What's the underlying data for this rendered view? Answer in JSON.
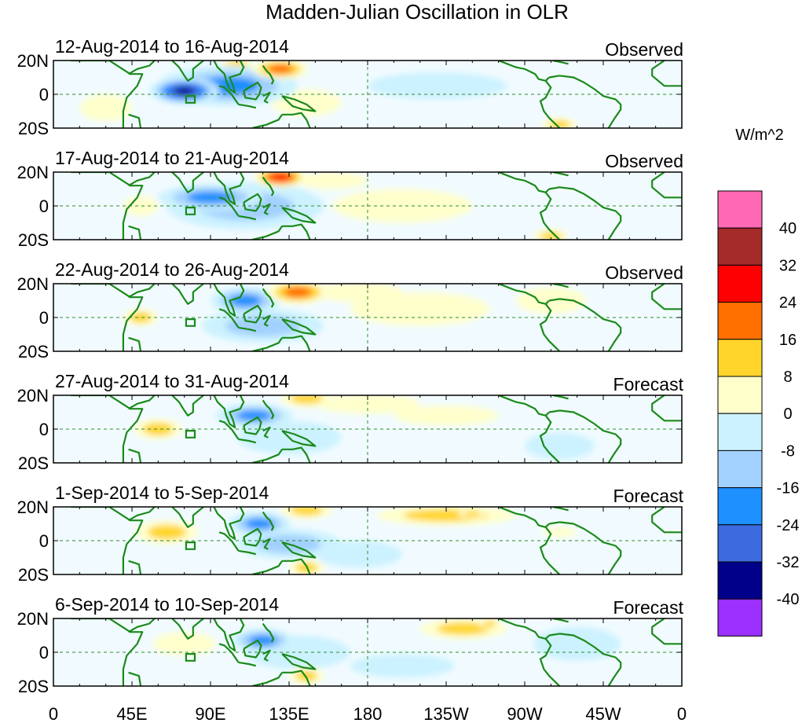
{
  "chart_data": {
    "type": "heatmap",
    "title": "Madden-Julian Oscillation in OLR",
    "units": "W/m^2",
    "colorbar": {
      "levels": [
        "40",
        "32",
        "24",
        "16",
        "8",
        "0",
        "-8",
        "-16",
        "-24",
        "-32",
        "-40"
      ],
      "colors": [
        "#ff69b4",
        "#a52a2a",
        "#ff0000",
        "#ff7000",
        "#ffd52b",
        "#ffffcc",
        "#ccf2ff",
        "#a3d1ff",
        "#1e90ff",
        "#3c6be0",
        "#00008b",
        "#9b30ff"
      ]
    },
    "xticks": [
      "0",
      "45E",
      "90E",
      "135E",
      "180",
      "135W",
      "90W",
      "45W",
      "0"
    ],
    "yticks": [
      "20N",
      "0",
      "20S"
    ],
    "panels": [
      {
        "period": "12-Aug-2014 to 16-Aug-2014",
        "type": "Observed",
        "anomalies": [
          {
            "lon": 75,
            "lat": 2,
            "value": -40,
            "lon_halfwidth": 20,
            "lat_halfwidth": 8
          },
          {
            "lon": 100,
            "lat": 5,
            "value": -20,
            "lon_halfwidth": 40,
            "lat_halfwidth": 12
          },
          {
            "lon": 130,
            "lat": 15,
            "value": 24,
            "lon_halfwidth": 16,
            "lat_halfwidth": 6
          },
          {
            "lon": 105,
            "lat": 17,
            "value": 16,
            "lon_halfwidth": 10,
            "lat_halfwidth": 5
          },
          {
            "lon": 145,
            "lat": -5,
            "value": 8,
            "lon_halfwidth": 20,
            "lat_halfwidth": 8
          },
          {
            "lon": 290,
            "lat": -18,
            "value": 12,
            "lon_halfwidth": 10,
            "lat_halfwidth": 4
          },
          {
            "lon": 220,
            "lat": 5,
            "value": -6,
            "lon_halfwidth": 40,
            "lat_halfwidth": 8
          },
          {
            "lon": 30,
            "lat": -8,
            "value": 6,
            "lon_halfwidth": 15,
            "lat_halfwidth": 8
          }
        ]
      },
      {
        "period": "17-Aug-2014 to 21-Aug-2014",
        "type": "Observed",
        "anomalies": [
          {
            "lon": 90,
            "lat": 5,
            "value": -24,
            "lon_halfwidth": 30,
            "lat_halfwidth": 8
          },
          {
            "lon": 110,
            "lat": 0,
            "value": -12,
            "lon_halfwidth": 45,
            "lat_halfwidth": 14
          },
          {
            "lon": 130,
            "lat": 17,
            "value": 28,
            "lon_halfwidth": 15,
            "lat_halfwidth": 6
          },
          {
            "lon": 160,
            "lat": 15,
            "value": 10,
            "lon_halfwidth": 20,
            "lat_halfwidth": 5
          },
          {
            "lon": 50,
            "lat": 0,
            "value": 8,
            "lon_halfwidth": 10,
            "lat_halfwidth": 6
          },
          {
            "lon": 285,
            "lat": -18,
            "value": 12,
            "lon_halfwidth": 10,
            "lat_halfwidth": 4
          },
          {
            "lon": 200,
            "lat": 0,
            "value": 5,
            "lon_halfwidth": 40,
            "lat_halfwidth": 10
          }
        ]
      },
      {
        "period": "22-Aug-2014 to 26-Aug-2014",
        "type": "Observed",
        "anomalies": [
          {
            "lon": 110,
            "lat": 10,
            "value": -22,
            "lon_halfwidth": 20,
            "lat_halfwidth": 8
          },
          {
            "lon": 120,
            "lat": -5,
            "value": -12,
            "lon_halfwidth": 35,
            "lat_halfwidth": 10
          },
          {
            "lon": 140,
            "lat": 15,
            "value": 22,
            "lon_halfwidth": 18,
            "lat_halfwidth": 7
          },
          {
            "lon": 175,
            "lat": 15,
            "value": 8,
            "lon_halfwidth": 25,
            "lat_halfwidth": 6
          },
          {
            "lon": 50,
            "lat": 0,
            "value": 18,
            "lon_halfwidth": 10,
            "lat_halfwidth": 5
          },
          {
            "lon": 210,
            "lat": 5,
            "value": 5,
            "lon_halfwidth": 40,
            "lat_halfwidth": 10
          },
          {
            "lon": 285,
            "lat": 10,
            "value": 5,
            "lon_halfwidth": 20,
            "lat_halfwidth": 8
          }
        ]
      },
      {
        "period": "27-Aug-2014 to 31-Aug-2014",
        "type": "Forecast",
        "anomalies": [
          {
            "lon": 115,
            "lat": 8,
            "value": -20,
            "lon_halfwidth": 22,
            "lat_halfwidth": 7
          },
          {
            "lon": 135,
            "lat": -5,
            "value": -10,
            "lon_halfwidth": 30,
            "lat_halfwidth": 10
          },
          {
            "lon": 145,
            "lat": 18,
            "value": 18,
            "lon_halfwidth": 15,
            "lat_halfwidth": 5
          },
          {
            "lon": 180,
            "lat": 15,
            "value": 10,
            "lon_halfwidth": 30,
            "lat_halfwidth": 6
          },
          {
            "lon": 60,
            "lat": 0,
            "value": 18,
            "lon_halfwidth": 14,
            "lat_halfwidth": 6
          },
          {
            "lon": 225,
            "lat": 8,
            "value": 8,
            "lon_halfwidth": 30,
            "lat_halfwidth": 6
          },
          {
            "lon": 290,
            "lat": -10,
            "value": -6,
            "lon_halfwidth": 20,
            "lat_halfwidth": 8
          }
        ]
      },
      {
        "period": "1-Sep-2014 to 5-Sep-2014",
        "type": "Forecast",
        "anomalies": [
          {
            "lon": 118,
            "lat": 10,
            "value": -22,
            "lon_halfwidth": 18,
            "lat_halfwidth": 7
          },
          {
            "lon": 135,
            "lat": -2,
            "value": -12,
            "lon_halfwidth": 30,
            "lat_halfwidth": 9
          },
          {
            "lon": 65,
            "lat": 5,
            "value": 12,
            "lon_halfwidth": 18,
            "lat_halfwidth": 7
          },
          {
            "lon": 145,
            "lat": -16,
            "value": 14,
            "lon_halfwidth": 10,
            "lat_halfwidth": 5
          },
          {
            "lon": 145,
            "lat": 18,
            "value": 12,
            "lon_halfwidth": 15,
            "lat_halfwidth": 5
          },
          {
            "lon": 225,
            "lat": 15,
            "value": 12,
            "lon_halfwidth": 40,
            "lat_halfwidth": 6
          },
          {
            "lon": 240,
            "lat": 16,
            "value": 18,
            "lon_halfwidth": 8,
            "lat_halfwidth": 3
          },
          {
            "lon": 175,
            "lat": -8,
            "value": -6,
            "lon_halfwidth": 25,
            "lat_halfwidth": 8
          },
          {
            "lon": 290,
            "lat": 5,
            "value": 10,
            "lon_halfwidth": 10,
            "lat_halfwidth": 3
          }
        ]
      },
      {
        "period": "6-Sep-2014 to 10-Sep-2014",
        "type": "Forecast",
        "anomalies": [
          {
            "lon": 120,
            "lat": 7,
            "value": -22,
            "lon_halfwidth": 18,
            "lat_halfwidth": 7
          },
          {
            "lon": 140,
            "lat": 0,
            "value": -10,
            "lon_halfwidth": 30,
            "lat_halfwidth": 10
          },
          {
            "lon": 75,
            "lat": 5,
            "value": 10,
            "lon_halfwidth": 18,
            "lat_halfwidth": 7
          },
          {
            "lon": 145,
            "lat": -14,
            "value": 14,
            "lon_halfwidth": 10,
            "lat_halfwidth": 5
          },
          {
            "lon": 235,
            "lat": 14,
            "value": 14,
            "lon_halfwidth": 25,
            "lat_halfwidth": 6
          },
          {
            "lon": 250,
            "lat": 17,
            "value": 18,
            "lon_halfwidth": 6,
            "lat_halfwidth": 3
          },
          {
            "lon": 200,
            "lat": -8,
            "value": -8,
            "lon_halfwidth": 30,
            "lat_halfwidth": 7
          },
          {
            "lon": 300,
            "lat": 5,
            "value": -6,
            "lon_halfwidth": 25,
            "lat_halfwidth": 10
          }
        ]
      }
    ]
  }
}
